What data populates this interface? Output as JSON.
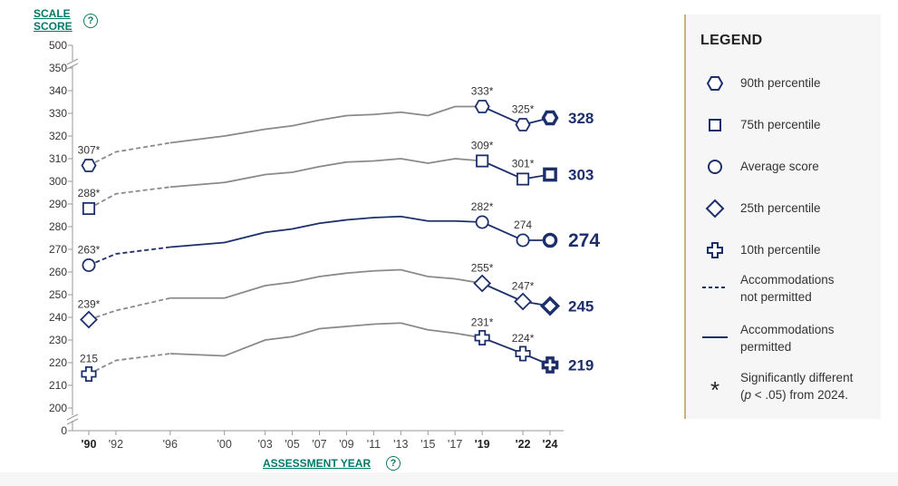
{
  "axis_titles": {
    "y_line1": "SCALE",
    "y_line2": "SCORE",
    "x": "ASSESSMENT YEAR",
    "help_glyph": "?"
  },
  "legend": {
    "title": "LEGEND",
    "items": [
      {
        "symbol": "hexagon",
        "label": "90th percentile"
      },
      {
        "symbol": "square",
        "label": "75th percentile"
      },
      {
        "symbol": "circle",
        "label": "Average score"
      },
      {
        "symbol": "diamond",
        "label": "25th percentile"
      },
      {
        "symbol": "cross",
        "label": "10th percentile"
      },
      {
        "symbol": "dashed-line",
        "label_line1": "Accommodations",
        "label_line2": "not permitted"
      },
      {
        "symbol": "solid-line",
        "label_line1": "Accommodations",
        "label_line2": "permitted"
      },
      {
        "symbol": "asterisk",
        "glyph": "*",
        "label_line1": "Significantly different",
        "label_line2_p": "p",
        "label_line2_rest": " < .05) from 2024.",
        "label_line2_open": "("
      }
    ]
  },
  "colors": {
    "navy": "#1c2f6b",
    "gray": "#8a8a8a",
    "accent_green": "#007a68",
    "legend_bg": "#f6f6f6"
  },
  "chart_data": {
    "type": "line",
    "xlabel": "ASSESSMENT YEAR",
    "ylabel": "SCALE SCORE",
    "ylim": [
      200,
      350
    ],
    "y_axis_top_label": "500",
    "y_axis_bottom_label": "0",
    "y_ticks": [
      200,
      210,
      220,
      230,
      240,
      250,
      260,
      270,
      280,
      290,
      300,
      310,
      320,
      330,
      340,
      350
    ],
    "x_ticks": [
      {
        "year": 1990,
        "label": "'90",
        "bold": true
      },
      {
        "year": 1992,
        "label": "'92",
        "bold": false
      },
      {
        "year": 1996,
        "label": "'96",
        "bold": false
      },
      {
        "year": 2000,
        "label": "'00",
        "bold": false
      },
      {
        "year": 2003,
        "label": "'03",
        "bold": false
      },
      {
        "year": 2005,
        "label": "'05",
        "bold": false
      },
      {
        "year": 2007,
        "label": "'07",
        "bold": false
      },
      {
        "year": 2009,
        "label": "'09",
        "bold": false
      },
      {
        "year": 2011,
        "label": "'11",
        "bold": false
      },
      {
        "year": 2013,
        "label": "'13",
        "bold": false
      },
      {
        "year": 2015,
        "label": "'15",
        "bold": false
      },
      {
        "year": 2017,
        "label": "'17",
        "bold": false
      },
      {
        "year": 2019,
        "label": "'19",
        "bold": true
      },
      {
        "year": 2022,
        "label": "'22",
        "bold": true
      },
      {
        "year": 2024,
        "label": "'24",
        "bold": true
      }
    ],
    "accommodations_not_permitted_years": [
      1990,
      1992,
      1996
    ],
    "series": [
      {
        "name": "90th percentile",
        "symbol": "hexagon",
        "highlight": false,
        "values": [
          [
            1990,
            307
          ],
          [
            1992,
            313
          ],
          [
            1996,
            317
          ],
          [
            2000,
            320
          ],
          [
            2003,
            323
          ],
          [
            2005,
            324.5
          ],
          [
            2007,
            327
          ],
          [
            2009,
            329
          ],
          [
            2011,
            329.5
          ],
          [
            2013,
            330.5
          ],
          [
            2015,
            329
          ],
          [
            2017,
            333
          ],
          [
            2019,
            333
          ],
          [
            2022,
            325
          ],
          [
            2024,
            328
          ]
        ],
        "labels": [
          {
            "year": 1990,
            "text": "307*"
          },
          {
            "year": 2019,
            "text": "333*"
          },
          {
            "year": 2022,
            "text": "325*"
          }
        ],
        "end_label": "328"
      },
      {
        "name": "75th percentile",
        "symbol": "square",
        "highlight": false,
        "values": [
          [
            1990,
            288
          ],
          [
            1992,
            294.5
          ],
          [
            1996,
            297.5
          ],
          [
            2000,
            299.5
          ],
          [
            2003,
            303
          ],
          [
            2005,
            304
          ],
          [
            2007,
            306.5
          ],
          [
            2009,
            308.5
          ],
          [
            2011,
            309
          ],
          [
            2013,
            310
          ],
          [
            2015,
            308
          ],
          [
            2017,
            310
          ],
          [
            2019,
            309
          ],
          [
            2022,
            301
          ],
          [
            2024,
            303
          ]
        ],
        "labels": [
          {
            "year": 1990,
            "text": "288*"
          },
          {
            "year": 2019,
            "text": "309*"
          },
          {
            "year": 2022,
            "text": "301*"
          }
        ],
        "end_label": "303"
      },
      {
        "name": "Average score",
        "symbol": "circle",
        "highlight": true,
        "values": [
          [
            1990,
            263
          ],
          [
            1992,
            268
          ],
          [
            1996,
            271
          ],
          [
            2000,
            273
          ],
          [
            2003,
            277.5
          ],
          [
            2005,
            279
          ],
          [
            2007,
            281.5
          ],
          [
            2009,
            283
          ],
          [
            2011,
            284
          ],
          [
            2013,
            284.5
          ],
          [
            2015,
            282.5
          ],
          [
            2017,
            282.5
          ],
          [
            2019,
            282
          ],
          [
            2022,
            274
          ],
          [
            2024,
            274
          ]
        ],
        "labels": [
          {
            "year": 1990,
            "text": "263*"
          },
          {
            "year": 2019,
            "text": "282*"
          },
          {
            "year": 2022,
            "text": "274"
          }
        ],
        "end_label": "274"
      },
      {
        "name": "25th percentile",
        "symbol": "diamond",
        "highlight": false,
        "values": [
          [
            1990,
            239
          ],
          [
            1992,
            243
          ],
          [
            1996,
            248.5
          ],
          [
            2000,
            248.5
          ],
          [
            2003,
            254
          ],
          [
            2005,
            255.5
          ],
          [
            2007,
            258
          ],
          [
            2009,
            259.5
          ],
          [
            2011,
            260.5
          ],
          [
            2013,
            261
          ],
          [
            2015,
            258
          ],
          [
            2017,
            257
          ],
          [
            2019,
            255
          ],
          [
            2022,
            247
          ],
          [
            2024,
            245
          ]
        ],
        "labels": [
          {
            "year": 1990,
            "text": "239*"
          },
          {
            "year": 2019,
            "text": "255*"
          },
          {
            "year": 2022,
            "text": "247*"
          }
        ],
        "end_label": "245"
      },
      {
        "name": "10th percentile",
        "symbol": "cross",
        "highlight": false,
        "values": [
          [
            1990,
            215
          ],
          [
            1992,
            221
          ],
          [
            1996,
            224
          ],
          [
            2000,
            223
          ],
          [
            2003,
            230
          ],
          [
            2005,
            231.5
          ],
          [
            2007,
            235
          ],
          [
            2009,
            236
          ],
          [
            2011,
            237
          ],
          [
            2013,
            237.5
          ],
          [
            2015,
            234.5
          ],
          [
            2017,
            233
          ],
          [
            2019,
            231
          ],
          [
            2022,
            224
          ],
          [
            2024,
            219
          ]
        ],
        "labels": [
          {
            "year": 1990,
            "text": "215"
          },
          {
            "year": 2019,
            "text": "231*"
          },
          {
            "year": 2022,
            "text": "224*"
          }
        ],
        "end_label": "219"
      }
    ]
  }
}
